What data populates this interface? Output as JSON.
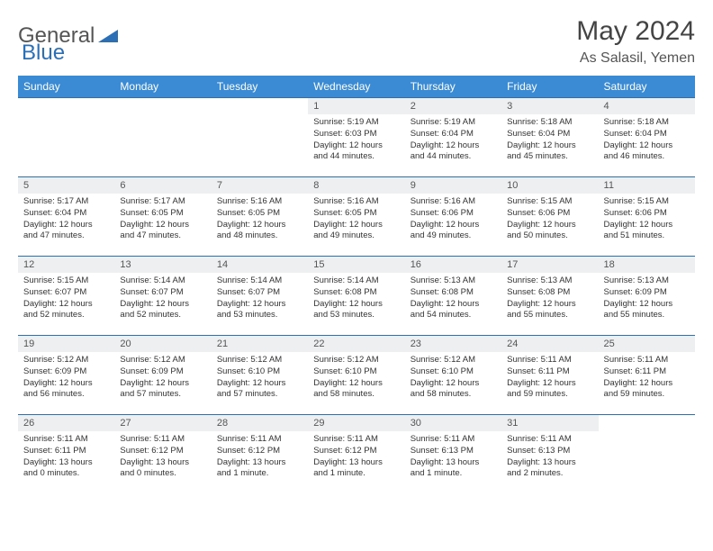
{
  "logo": {
    "text1": "General",
    "text2": "Blue",
    "color1": "#555555",
    "color2": "#2c6fb5",
    "triangle_color": "#2c6fb5"
  },
  "title": "May 2024",
  "location": "As Salasil, Yemen",
  "colors": {
    "header_bg": "#3b8bd4",
    "header_text": "#ffffff",
    "row_border": "#2c6fb5",
    "daynum_bg": "#edeff1",
    "text": "#333333"
  },
  "weekdays": [
    "Sunday",
    "Monday",
    "Tuesday",
    "Wednesday",
    "Thursday",
    "Friday",
    "Saturday"
  ],
  "weeks": [
    [
      {
        "n": "",
        "l1": "",
        "l2": "",
        "l3": "",
        "l4": ""
      },
      {
        "n": "",
        "l1": "",
        "l2": "",
        "l3": "",
        "l4": ""
      },
      {
        "n": "",
        "l1": "",
        "l2": "",
        "l3": "",
        "l4": ""
      },
      {
        "n": "1",
        "l1": "Sunrise: 5:19 AM",
        "l2": "Sunset: 6:03 PM",
        "l3": "Daylight: 12 hours",
        "l4": "and 44 minutes."
      },
      {
        "n": "2",
        "l1": "Sunrise: 5:19 AM",
        "l2": "Sunset: 6:04 PM",
        "l3": "Daylight: 12 hours",
        "l4": "and 44 minutes."
      },
      {
        "n": "3",
        "l1": "Sunrise: 5:18 AM",
        "l2": "Sunset: 6:04 PM",
        "l3": "Daylight: 12 hours",
        "l4": "and 45 minutes."
      },
      {
        "n": "4",
        "l1": "Sunrise: 5:18 AM",
        "l2": "Sunset: 6:04 PM",
        "l3": "Daylight: 12 hours",
        "l4": "and 46 minutes."
      }
    ],
    [
      {
        "n": "5",
        "l1": "Sunrise: 5:17 AM",
        "l2": "Sunset: 6:04 PM",
        "l3": "Daylight: 12 hours",
        "l4": "and 47 minutes."
      },
      {
        "n": "6",
        "l1": "Sunrise: 5:17 AM",
        "l2": "Sunset: 6:05 PM",
        "l3": "Daylight: 12 hours",
        "l4": "and 47 minutes."
      },
      {
        "n": "7",
        "l1": "Sunrise: 5:16 AM",
        "l2": "Sunset: 6:05 PM",
        "l3": "Daylight: 12 hours",
        "l4": "and 48 minutes."
      },
      {
        "n": "8",
        "l1": "Sunrise: 5:16 AM",
        "l2": "Sunset: 6:05 PM",
        "l3": "Daylight: 12 hours",
        "l4": "and 49 minutes."
      },
      {
        "n": "9",
        "l1": "Sunrise: 5:16 AM",
        "l2": "Sunset: 6:06 PM",
        "l3": "Daylight: 12 hours",
        "l4": "and 49 minutes."
      },
      {
        "n": "10",
        "l1": "Sunrise: 5:15 AM",
        "l2": "Sunset: 6:06 PM",
        "l3": "Daylight: 12 hours",
        "l4": "and 50 minutes."
      },
      {
        "n": "11",
        "l1": "Sunrise: 5:15 AM",
        "l2": "Sunset: 6:06 PM",
        "l3": "Daylight: 12 hours",
        "l4": "and 51 minutes."
      }
    ],
    [
      {
        "n": "12",
        "l1": "Sunrise: 5:15 AM",
        "l2": "Sunset: 6:07 PM",
        "l3": "Daylight: 12 hours",
        "l4": "and 52 minutes."
      },
      {
        "n": "13",
        "l1": "Sunrise: 5:14 AM",
        "l2": "Sunset: 6:07 PM",
        "l3": "Daylight: 12 hours",
        "l4": "and 52 minutes."
      },
      {
        "n": "14",
        "l1": "Sunrise: 5:14 AM",
        "l2": "Sunset: 6:07 PM",
        "l3": "Daylight: 12 hours",
        "l4": "and 53 minutes."
      },
      {
        "n": "15",
        "l1": "Sunrise: 5:14 AM",
        "l2": "Sunset: 6:08 PM",
        "l3": "Daylight: 12 hours",
        "l4": "and 53 minutes."
      },
      {
        "n": "16",
        "l1": "Sunrise: 5:13 AM",
        "l2": "Sunset: 6:08 PM",
        "l3": "Daylight: 12 hours",
        "l4": "and 54 minutes."
      },
      {
        "n": "17",
        "l1": "Sunrise: 5:13 AM",
        "l2": "Sunset: 6:08 PM",
        "l3": "Daylight: 12 hours",
        "l4": "and 55 minutes."
      },
      {
        "n": "18",
        "l1": "Sunrise: 5:13 AM",
        "l2": "Sunset: 6:09 PM",
        "l3": "Daylight: 12 hours",
        "l4": "and 55 minutes."
      }
    ],
    [
      {
        "n": "19",
        "l1": "Sunrise: 5:12 AM",
        "l2": "Sunset: 6:09 PM",
        "l3": "Daylight: 12 hours",
        "l4": "and 56 minutes."
      },
      {
        "n": "20",
        "l1": "Sunrise: 5:12 AM",
        "l2": "Sunset: 6:09 PM",
        "l3": "Daylight: 12 hours",
        "l4": "and 57 minutes."
      },
      {
        "n": "21",
        "l1": "Sunrise: 5:12 AM",
        "l2": "Sunset: 6:10 PM",
        "l3": "Daylight: 12 hours",
        "l4": "and 57 minutes."
      },
      {
        "n": "22",
        "l1": "Sunrise: 5:12 AM",
        "l2": "Sunset: 6:10 PM",
        "l3": "Daylight: 12 hours",
        "l4": "and 58 minutes."
      },
      {
        "n": "23",
        "l1": "Sunrise: 5:12 AM",
        "l2": "Sunset: 6:10 PM",
        "l3": "Daylight: 12 hours",
        "l4": "and 58 minutes."
      },
      {
        "n": "24",
        "l1": "Sunrise: 5:11 AM",
        "l2": "Sunset: 6:11 PM",
        "l3": "Daylight: 12 hours",
        "l4": "and 59 minutes."
      },
      {
        "n": "25",
        "l1": "Sunrise: 5:11 AM",
        "l2": "Sunset: 6:11 PM",
        "l3": "Daylight: 12 hours",
        "l4": "and 59 minutes."
      }
    ],
    [
      {
        "n": "26",
        "l1": "Sunrise: 5:11 AM",
        "l2": "Sunset: 6:11 PM",
        "l3": "Daylight: 13 hours",
        "l4": "and 0 minutes."
      },
      {
        "n": "27",
        "l1": "Sunrise: 5:11 AM",
        "l2": "Sunset: 6:12 PM",
        "l3": "Daylight: 13 hours",
        "l4": "and 0 minutes."
      },
      {
        "n": "28",
        "l1": "Sunrise: 5:11 AM",
        "l2": "Sunset: 6:12 PM",
        "l3": "Daylight: 13 hours",
        "l4": "and 1 minute."
      },
      {
        "n": "29",
        "l1": "Sunrise: 5:11 AM",
        "l2": "Sunset: 6:12 PM",
        "l3": "Daylight: 13 hours",
        "l4": "and 1 minute."
      },
      {
        "n": "30",
        "l1": "Sunrise: 5:11 AM",
        "l2": "Sunset: 6:13 PM",
        "l3": "Daylight: 13 hours",
        "l4": "and 1 minute."
      },
      {
        "n": "31",
        "l1": "Sunrise: 5:11 AM",
        "l2": "Sunset: 6:13 PM",
        "l3": "Daylight: 13 hours",
        "l4": "and 2 minutes."
      },
      {
        "n": "",
        "l1": "",
        "l2": "",
        "l3": "",
        "l4": ""
      }
    ]
  ]
}
